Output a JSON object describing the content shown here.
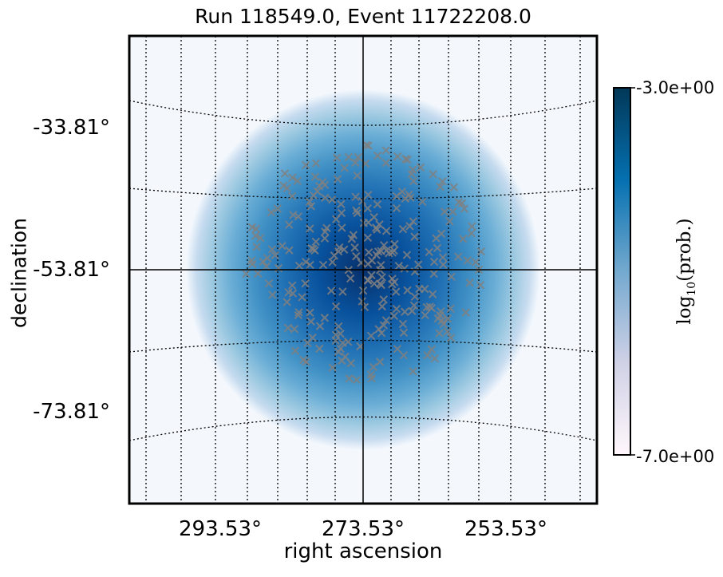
{
  "chart_data": {
    "type": "heatmap",
    "projection": "sky map (right ascension / declination)",
    "title": "Run 118549.0, Event 11722208.0",
    "xlabel": "right ascension",
    "ylabel": "declination",
    "x_ticks": [
      "293.53°",
      "273.53°",
      "253.53°"
    ],
    "y_ticks": [
      "-33.81°",
      "-53.81°",
      "-73.81°"
    ],
    "center": {
      "ra": 273.53,
      "dec": -53.81
    },
    "colormap": "Blues",
    "colorbar": {
      "label": "log10(prob.)",
      "label_main": "log",
      "label_sub": "10",
      "label_rest": "(prob.)",
      "max_label": "-3.0e+00",
      "min_label": "-7.0e+00",
      "vmin": -7.0,
      "vmax": -3.0
    },
    "grid": true,
    "markers": {
      "symbol": "x",
      "color": "#808080",
      "count": 260
    }
  }
}
